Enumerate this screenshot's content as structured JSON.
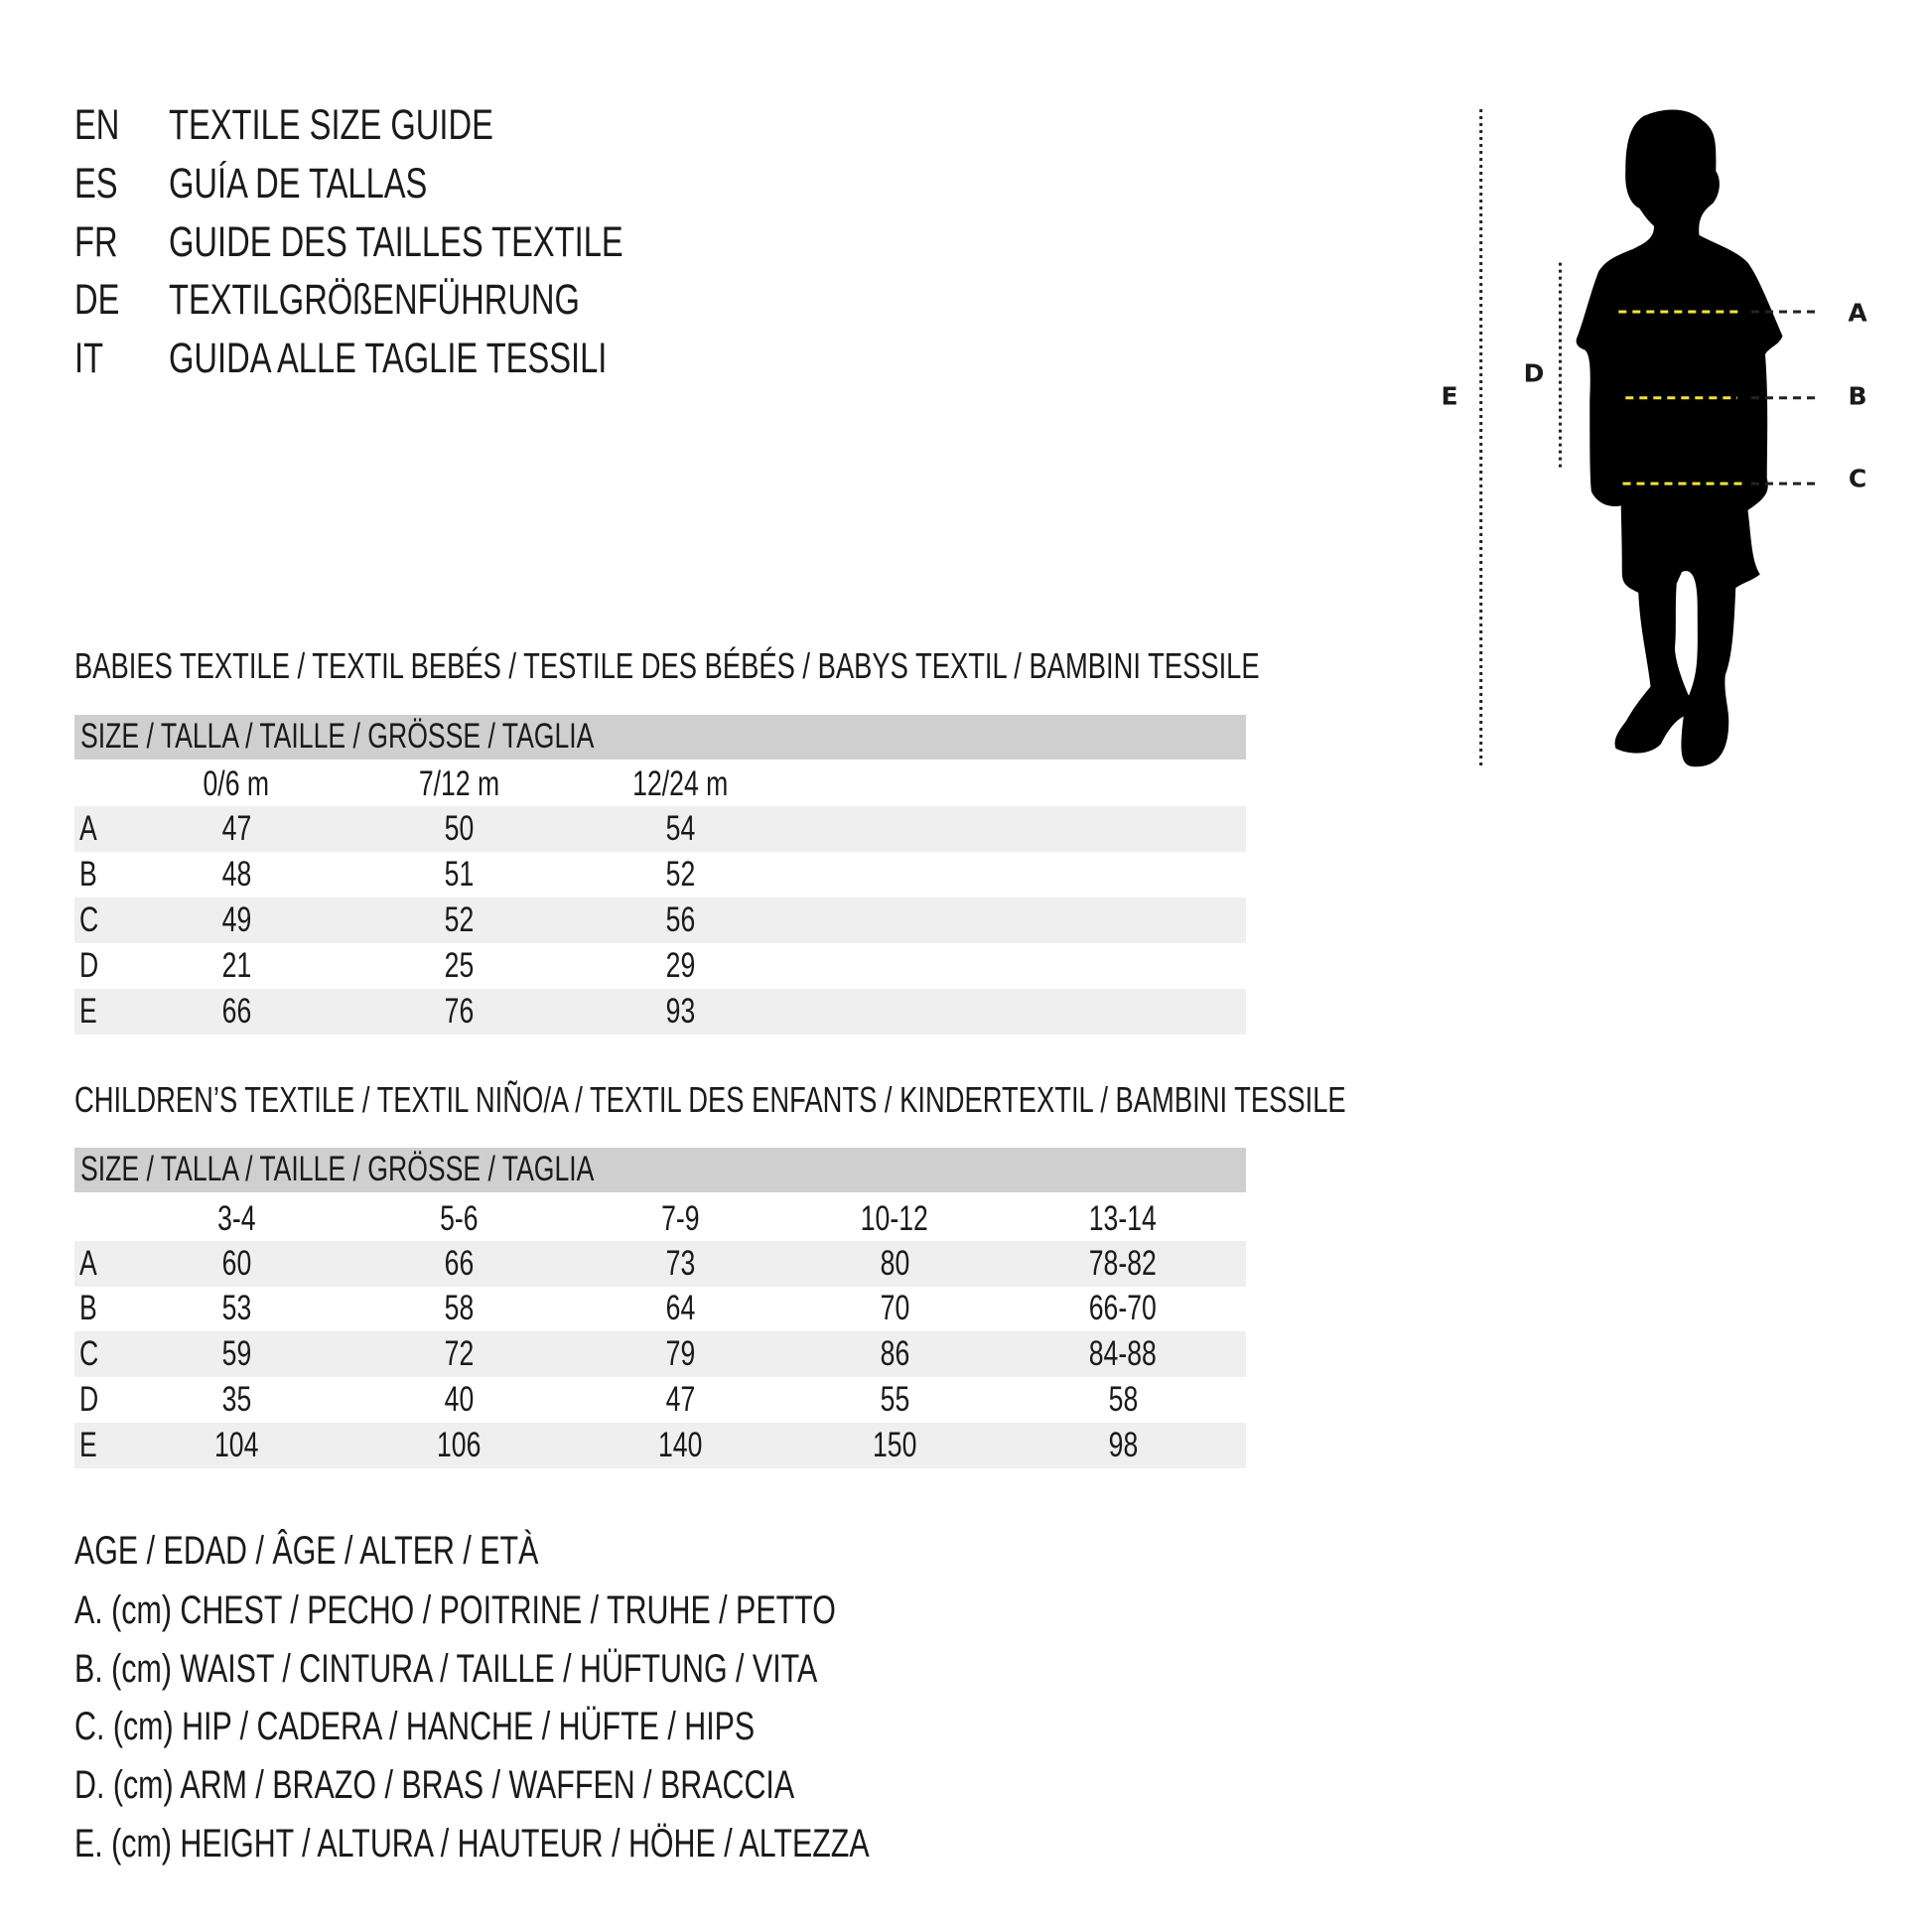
{
  "titles": [
    {
      "code": "EN",
      "text": "TEXTILE SIZE GUIDE"
    },
    {
      "code": "ES",
      "text": "GUÍA DE TALLAS"
    },
    {
      "code": "FR",
      "text": "GUIDE DES TAILLES TEXTILE"
    },
    {
      "code": "DE",
      "text": "TEXTILGRÖßENFÜHRUNG"
    },
    {
      "code": "IT",
      "text": "GUIDA ALLE TAGLIE TESSILI"
    }
  ],
  "babies": {
    "heading": "BABIES TEXTILE / TEXTIL BEBÉS / TESTILE DES BÉBÉS / BABYS TEXTIL / BAMBINI TESSILE",
    "size_header": "SIZE / TALLA / TAILLE / GRÖSSE / TAGLIA",
    "columns": [
      "0/6 m",
      "7/12 m",
      "12/24 m"
    ],
    "rows": [
      {
        "label": "A",
        "values": [
          "47",
          "50",
          "54"
        ]
      },
      {
        "label": "B",
        "values": [
          "48",
          "51",
          "52"
        ]
      },
      {
        "label": "C",
        "values": [
          "49",
          "52",
          "56"
        ]
      },
      {
        "label": "D",
        "values": [
          "21",
          "25",
          "29"
        ]
      },
      {
        "label": "E",
        "values": [
          "66",
          "76",
          "93"
        ]
      }
    ]
  },
  "children": {
    "heading": "CHILDREN’S TEXTILE / TEXTIL NIÑO/A / TEXTIL DES ENFANTS / KINDERTEXTIL / BAMBINI TESSILE",
    "size_header": "SIZE / TALLA / TAILLE / GRÖSSE / TAGLIA",
    "columns": [
      "3-4",
      "5-6",
      "7-9",
      "10-12",
      "13-14"
    ],
    "rows": [
      {
        "label": "A",
        "values": [
          "60",
          "66",
          "73",
          "80",
          "78-82"
        ]
      },
      {
        "label": "B",
        "values": [
          "53",
          "58",
          "64",
          "70",
          "66-70"
        ]
      },
      {
        "label": "C",
        "values": [
          "59",
          "72",
          "79",
          "86",
          "84-88"
        ]
      },
      {
        "label": "D",
        "values": [
          "35",
          "40",
          "47",
          "55",
          "58"
        ]
      },
      {
        "label": "E",
        "values": [
          "104",
          "106",
          "140",
          "150",
          "98"
        ]
      }
    ]
  },
  "legend": [
    "AGE / EDAD / ÂGE / ALTER / ETÀ",
    "A. (cm) CHEST / PECHO / POITRINE / TRUHE / PETTO",
    "B. (cm) WAIST / CINTURA / TAILLE / HÜFTUNG / VITA",
    "C. (cm) HIP / CADERA / HANCHE / HÜFTE / HIPS",
    "D. (cm) ARM / BRAZO / BRAS / WAFFEN / BRACCIA",
    "E. (cm) HEIGHT / ALTURA / HAUTEUR / HÖHE / ALTEZZA"
  ],
  "figure": {
    "labels": {
      "a": "A",
      "b": "B",
      "c": "C",
      "d": "D",
      "e": "E"
    },
    "icon": "child-silhouette-icon",
    "measure_line_color": "#f2e33a",
    "silhouette_color": "#000000",
    "header_bar_color": "#cfcfd0",
    "stripe_color": "#efefef"
  }
}
